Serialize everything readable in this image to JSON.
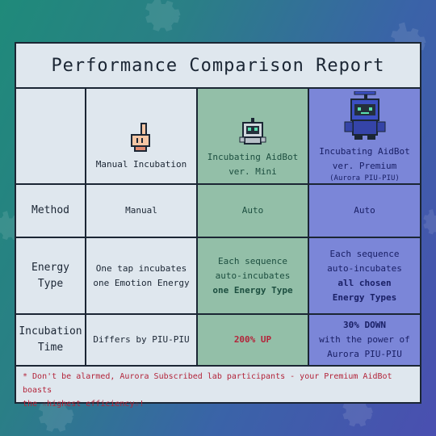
{
  "title": "Performance Comparison Report",
  "columns": {
    "manual": {
      "label": "Manual Incubation",
      "icon": "pointing-hand-icon"
    },
    "mini": {
      "label_line1": "Incubating AidBot",
      "label_line2": "ver. Mini",
      "icon": "robot-mini-icon"
    },
    "premium": {
      "label_line1": "Incubating AidBot",
      "label_line2": "ver. Premium",
      "label_line3": "(Aurora PIU-PIU)",
      "icon": "robot-premium-icon"
    }
  },
  "rows": {
    "method": {
      "label": "Method",
      "manual": "Manual",
      "mini": "Auto",
      "premium": "Auto"
    },
    "energy": {
      "label": "Energy Type",
      "manual_line1": "One tap incubates",
      "manual_line2": "one Emotion Energy",
      "mini_line1": "Each sequence",
      "mini_line2": "auto-incubates",
      "mini_line3": "one Energy Type",
      "premium_line1": "Each sequence",
      "premium_line2": "auto-incubates",
      "premium_line3": "all chosen",
      "premium_line4": "Energy Types"
    },
    "time": {
      "label_line1": "Incubation",
      "label_line2": "Time",
      "manual": "Differs by PIU-PIU",
      "mini": "200% UP",
      "premium_line1": "30% DOWN",
      "premium_line2": "with the power of",
      "premium_line3": "Aurora PIU-PIU"
    }
  },
  "footer": {
    "line1": "* Don't be alarmed, Aurora Subscribed lab participants - your Premium AidBot boasts",
    "line2": "the ☆highest efficiency☆!"
  },
  "colors": {
    "card_bg": "#dfe7ee",
    "mini_bg": "#93bfa8",
    "premium_bg": "#7b86d8",
    "accent_red": "#b3243a",
    "border": "#1b2634"
  },
  "decor": {
    "icon": "gear-icon"
  }
}
